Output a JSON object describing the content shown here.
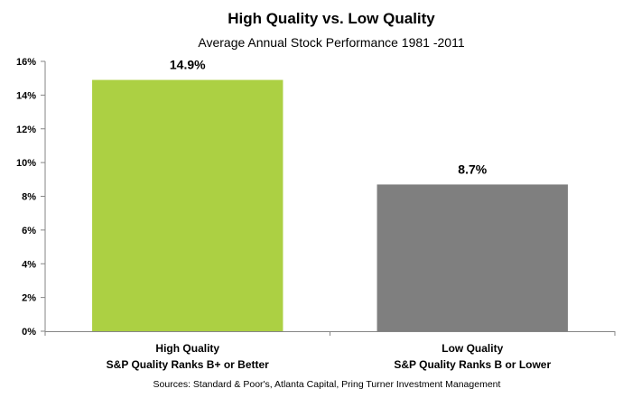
{
  "chart_data": {
    "type": "bar",
    "title": "High Quality vs. Low Quality",
    "subtitle": "Average Annual Stock Performance 1981 -2011",
    "categories": [
      [
        "High Quality",
        "S&P Quality Ranks B+ or Better"
      ],
      [
        "Low Quality",
        "S&P Quality Ranks B or Lower"
      ]
    ],
    "values": [
      14.9,
      8.7
    ],
    "data_labels": [
      "14.9%",
      "8.7%"
    ],
    "colors": [
      "#acd043",
      "#7f7f7f"
    ],
    "ylim": [
      0,
      16
    ],
    "yticks": [
      0,
      2,
      4,
      6,
      8,
      10,
      12,
      14,
      16
    ],
    "ytick_labels": [
      "0%",
      "2%",
      "4%",
      "6%",
      "8%",
      "10%",
      "12%",
      "14%",
      "16%"
    ],
    "xlabel": "",
    "ylabel": "",
    "grid": false,
    "legend": "none",
    "source": "Sources: Standard & Poor's, Atlanta Capital, Pring Turner Investment Management"
  }
}
